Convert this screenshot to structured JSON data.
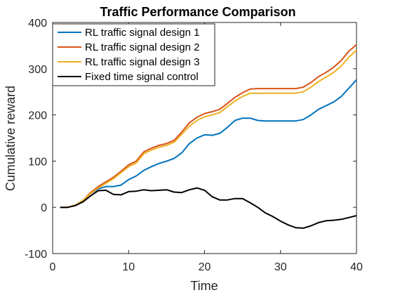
{
  "chart_data": {
    "type": "line",
    "title": "Traffic Performance Comparison",
    "xlabel": "Time",
    "ylabel": "Cumulative reward",
    "xlim": [
      0,
      40
    ],
    "ylim": [
      -100,
      400
    ],
    "xticks": [
      0,
      10,
      20,
      30,
      40
    ],
    "yticks": [
      -100,
      0,
      100,
      200,
      300,
      400
    ],
    "grid": false,
    "legend_position": "top-left",
    "x": [
      1,
      2,
      3,
      4,
      5,
      6,
      7,
      8,
      9,
      10,
      11,
      12,
      13,
      14,
      15,
      16,
      17,
      18,
      19,
      20,
      21,
      22,
      23,
      24,
      25,
      26,
      27,
      28,
      29,
      30,
      31,
      32,
      33,
      34,
      35,
      36,
      37,
      38,
      39,
      40
    ],
    "series": [
      {
        "name": "RL traffic signal design 1",
        "color": "#0072BD",
        "values": [
          0,
          0,
          5,
          15,
          30,
          40,
          45,
          45,
          48,
          60,
          68,
          80,
          88,
          95,
          100,
          106,
          118,
          138,
          150,
          157,
          156,
          160,
          173,
          188,
          193,
          193,
          188,
          187,
          187,
          187,
          187,
          187,
          190,
          200,
          212,
          220,
          228,
          240,
          258,
          276
        ]
      },
      {
        "name": "RL traffic signal design 2",
        "color": "#D95319",
        "values": [
          0,
          0,
          5,
          15,
          32,
          45,
          55,
          65,
          78,
          92,
          100,
          120,
          128,
          134,
          138,
          145,
          163,
          183,
          195,
          203,
          207,
          212,
          225,
          238,
          248,
          256,
          257,
          257,
          257,
          257,
          257,
          257,
          260,
          270,
          283,
          292,
          303,
          318,
          338,
          352
        ]
      },
      {
        "name": "RL traffic signal design 3",
        "color": "#EDB120",
        "values": [
          0,
          0,
          5,
          15,
          30,
          42,
          52,
          62,
          75,
          88,
          96,
          116,
          124,
          130,
          134,
          141,
          158,
          176,
          188,
          196,
          200,
          205,
          218,
          230,
          240,
          247,
          247,
          247,
          247,
          247,
          247,
          247,
          250,
          260,
          272,
          282,
          292,
          306,
          325,
          340
        ]
      },
      {
        "name": "Fixed time signal control",
        "color": "#000000",
        "values": [
          0,
          0,
          4,
          12,
          25,
          36,
          37,
          28,
          27,
          34,
          35,
          38,
          36,
          37,
          38,
          33,
          32,
          38,
          42,
          37,
          23,
          16,
          16,
          19,
          19,
          10,
          0,
          -12,
          -20,
          -30,
          -38,
          -44,
          -45,
          -40,
          -33,
          -29,
          -28,
          -26,
          -22,
          -18
        ]
      }
    ]
  }
}
